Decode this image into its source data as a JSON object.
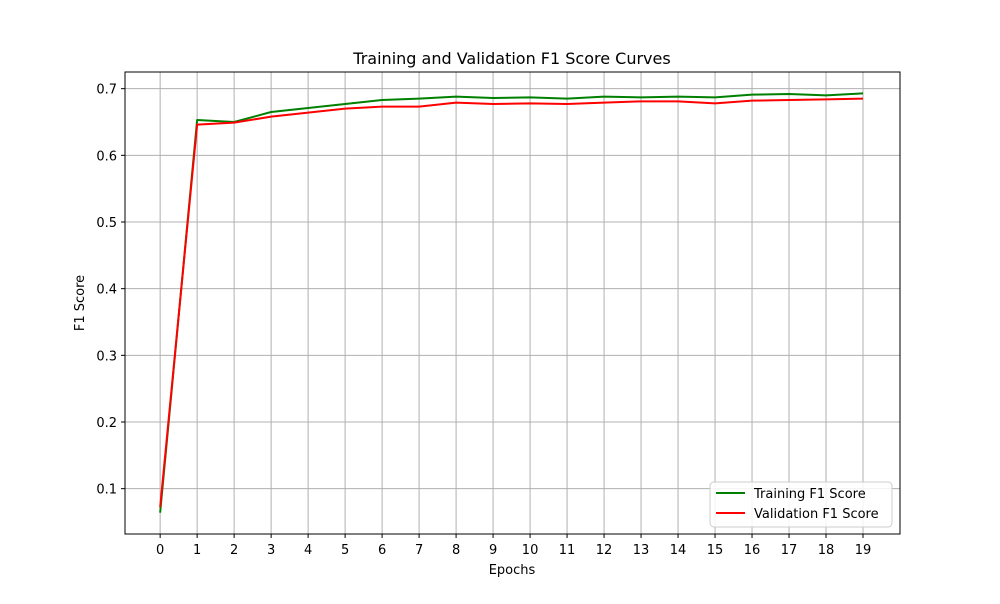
{
  "chart_data": {
    "type": "line",
    "title": "Training and Validation F1 Score Curves",
    "xlabel": "Epochs",
    "ylabel": "F1 Score",
    "x": [
      0,
      1,
      2,
      3,
      4,
      5,
      6,
      7,
      8,
      9,
      10,
      11,
      12,
      13,
      14,
      15,
      16,
      17,
      18,
      19
    ],
    "xticks": [
      "0",
      "1",
      "2",
      "3",
      "4",
      "5",
      "6",
      "7",
      "8",
      "9",
      "10",
      "11",
      "12",
      "13",
      "14",
      "15",
      "16",
      "17",
      "18",
      "19"
    ],
    "yticks": [
      "0.1",
      "0.2",
      "0.3",
      "0.4",
      "0.5",
      "0.6",
      "0.7"
    ],
    "ytick_values": [
      0.1,
      0.2,
      0.3,
      0.4,
      0.5,
      0.6,
      0.7
    ],
    "xlim": [
      -0.95,
      20.0
    ],
    "ylim": [
      0.032,
      0.725
    ],
    "grid": true,
    "legend_position": "lower-right",
    "series": [
      {
        "name": "Training F1 Score",
        "color": "#008000",
        "values": [
          0.064,
          0.653,
          0.65,
          0.665,
          0.671,
          0.677,
          0.683,
          0.685,
          0.688,
          0.686,
          0.687,
          0.685,
          0.688,
          0.687,
          0.688,
          0.687,
          0.691,
          0.692,
          0.69,
          0.693
        ]
      },
      {
        "name": "Validation F1 Score",
        "color": "#ff0000",
        "values": [
          0.072,
          0.646,
          0.649,
          0.658,
          0.664,
          0.67,
          0.673,
          0.673,
          0.679,
          0.677,
          0.678,
          0.677,
          0.679,
          0.681,
          0.681,
          0.678,
          0.682,
          0.683,
          0.684,
          0.685
        ]
      }
    ]
  }
}
